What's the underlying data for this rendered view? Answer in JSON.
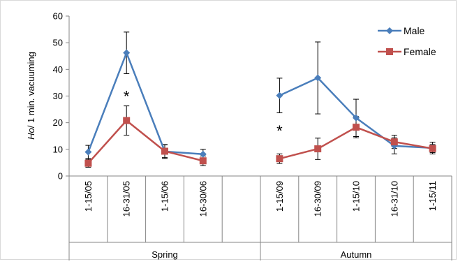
{
  "chart_data": {
    "type": "line",
    "ylabel_italic": "Ho",
    "ylabel_rest": "/ 1 min. vacuuming",
    "ylim": [
      0,
      60
    ],
    "yticks": [
      0,
      10,
      20,
      30,
      40,
      50,
      60
    ],
    "grid": false,
    "legend_position": "top-right",
    "categories": [
      "1-15/05",
      "16-31/05",
      "1-15/06",
      "16-30/06",
      "",
      "1-15/09",
      "16-30/09",
      "1-15/10",
      "16-31/10",
      "1-15/11"
    ],
    "groups": [
      {
        "label": "Spring",
        "start": 0,
        "end": 4
      },
      {
        "label": "Autumn",
        "start": 5,
        "end": 9
      }
    ],
    "series": [
      {
        "name": "Male",
        "color": "#4a7ebb",
        "marker": "diamond",
        "values": [
          9,
          46.2,
          9.2,
          8.2,
          null,
          30.2,
          36.8,
          21.8,
          11.3,
          10.5
        ],
        "errors": [
          2.5,
          7.8,
          2.6,
          1.8,
          null,
          6.5,
          13.5,
          7.0,
          3.0,
          2.2
        ]
      },
      {
        "name": "Female",
        "color": "#c0504d",
        "marker": "square",
        "values": [
          4.8,
          20.8,
          9.3,
          5.7,
          null,
          6.5,
          10.2,
          18.3,
          12.8,
          10.3
        ],
        "errors": [
          1.5,
          5.5,
          2.4,
          1.8,
          null,
          1.8,
          4.0,
          4.0,
          2.5,
          1.5
        ]
      }
    ],
    "annotations": [
      {
        "text": "*",
        "category_index": 1,
        "y": 30
      },
      {
        "text": "*",
        "category_index": 5,
        "y": 17
      }
    ]
  }
}
